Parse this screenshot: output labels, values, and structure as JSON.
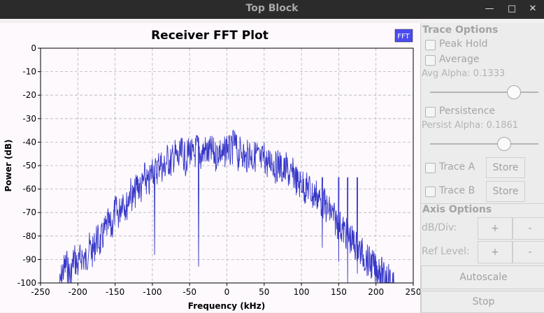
{
  "window": {
    "title": "Top Block",
    "controls": [
      "minimize",
      "maximize",
      "close"
    ]
  },
  "colors": {
    "trace": "#3737c8",
    "fft_badge": "#4b4bf0",
    "plot_bg": "#fdf9fd",
    "grid": "#b4b4b4"
  },
  "chart_data": {
    "type": "line",
    "title": "Receiver FFT Plot",
    "xlabel": "Frequency (kHz)",
    "ylabel": "Power (dB)",
    "xlim": [
      -250,
      250
    ],
    "ylim": [
      -100,
      0
    ],
    "xticks": [
      -250,
      -200,
      -150,
      -100,
      -50,
      0,
      50,
      100,
      150,
      200,
      250
    ],
    "yticks": [
      0,
      -10,
      -20,
      -30,
      -40,
      -50,
      -60,
      -70,
      -80,
      -90,
      -100
    ],
    "grid": true,
    "badge": "FFT",
    "series": [
      {
        "x": [
          -225,
          -220,
          -215,
          -210,
          -205,
          -200,
          -195,
          -190,
          -185,
          -180,
          -175,
          -170,
          -165,
          -160,
          -155,
          -150,
          -145,
          -140,
          -135,
          -130,
          -125,
          -120,
          -115,
          -110,
          -105,
          -100,
          -95,
          -90,
          -85,
          -80,
          -75,
          -70,
          -65,
          -60,
          -55,
          -50,
          -45,
          -40,
          -35,
          -30,
          -25,
          -20,
          -15,
          -10,
          -5,
          0,
          5,
          10,
          15,
          20,
          25,
          30,
          35,
          40,
          45,
          50,
          55,
          60,
          65,
          70,
          75,
          80,
          85,
          90,
          95,
          100,
          105,
          110,
          115,
          120,
          125,
          130,
          135,
          140,
          145,
          150,
          155,
          160,
          165,
          170,
          175,
          180,
          185,
          190,
          195,
          200,
          205,
          210,
          215,
          220,
          225
        ],
        "y": [
          -100,
          -92,
          -89,
          -95,
          -86,
          -90,
          -85,
          -88,
          -82,
          -84,
          -78,
          -80,
          -76,
          -72,
          -74,
          -66,
          -68,
          -60,
          -65,
          -58,
          -61,
          -55,
          -57,
          -52,
          -56,
          -48,
          -50,
          -45,
          -49,
          -44,
          -46,
          -42,
          -45,
          -41,
          -45,
          -40,
          -44,
          -39,
          -43,
          -40,
          -42,
          -41,
          -43,
          -40,
          -44,
          -38,
          -42,
          -37,
          -43,
          -40,
          -45,
          -41,
          -44,
          -42,
          -46,
          -43,
          -47,
          -44,
          -48,
          -46,
          -50,
          -48,
          -52,
          -50,
          -55,
          -54,
          -57,
          -56,
          -60,
          -59,
          -62,
          -63,
          -66,
          -67,
          -70,
          -72,
          -74,
          -76,
          -78,
          -80,
          -82,
          -84,
          -86,
          -88,
          -89,
          -92,
          -90,
          -95,
          -93,
          -97,
          -100
        ],
        "dips": [
          {
            "x": -97,
            "y": -88
          },
          {
            "x": -38,
            "y": -93
          },
          {
            "x": 128,
            "y": -85
          },
          {
            "x": 150,
            "y": -91
          },
          {
            "x": 162,
            "y": -100
          },
          {
            "x": 175,
            "y": -96
          }
        ]
      }
    ]
  },
  "side": {
    "trace_options_title": "Trace Options",
    "peak_hold_label": "Peak Hold",
    "average_label": "Average",
    "avg_alpha_label": "Avg Alpha:",
    "avg_alpha_value": "0.1333",
    "avg_alpha_level": 0.8,
    "persistence_label": "Persistence",
    "persist_alpha_label": "Persist Alpha:",
    "persist_alpha_value": "0.1861",
    "persist_alpha_level": 0.7,
    "trace_a_label": "Trace A",
    "trace_b_label": "Trace B",
    "store_label": "Store",
    "axis_options_title": "Axis Options",
    "db_div_label": "dB/Div:",
    "ref_level_label": "Ref Level:",
    "plus_label": "+",
    "minus_label": "-",
    "autoscale_label": "Autoscale",
    "stop_label": "Stop"
  }
}
